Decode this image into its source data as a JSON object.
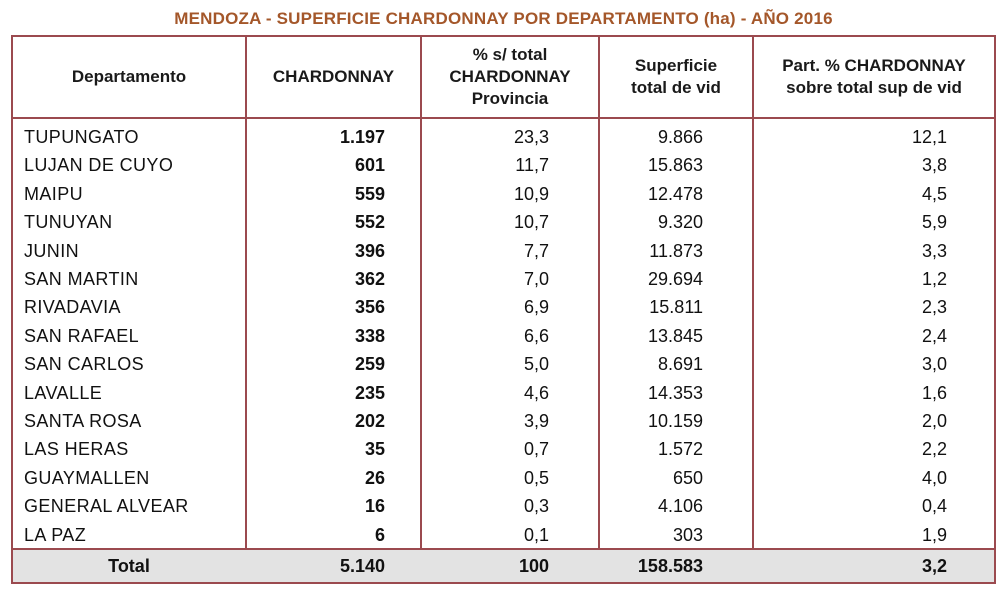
{
  "title": "MENDOZA - SUPERFICIE CHARDONNAY POR DEPARTAMENTO (ha) - AÑO 2016",
  "colors": {
    "title": "#a4572a",
    "border": "#9b4a4f",
    "total_bg": "#e3e3e3"
  },
  "headers": {
    "departamento": "Departamento",
    "chardonnay": "CHARDONNAY",
    "pct_total": [
      "% s/ total",
      "CHARDONNAY",
      "Provincia"
    ],
    "superficie": [
      "Superficie",
      "total de vid"
    ],
    "participacion": [
      "Part. % CHARDONNAY",
      "sobre total sup de vid"
    ]
  },
  "chart_data": {
    "type": "table",
    "title": "MENDOZA - SUPERFICIE CHARDONNAY POR DEPARTAMENTO (ha) - AÑO 2016",
    "columns": [
      "Departamento",
      "CHARDONNAY",
      "% s/ total CHARDONNAY Provincia",
      "Superficie total de vid",
      "Part. % CHARDONNAY sobre total sup de vid"
    ],
    "rows": [
      [
        "TUPUNGATO",
        "1.197",
        "23,3",
        "9.866",
        "12,1"
      ],
      [
        "LUJAN DE CUYO",
        "601",
        "11,7",
        "15.863",
        "3,8"
      ],
      [
        "MAIPU",
        "559",
        "10,9",
        "12.478",
        "4,5"
      ],
      [
        "TUNUYAN",
        "552",
        "10,7",
        "9.320",
        "5,9"
      ],
      [
        "JUNIN",
        "396",
        "7,7",
        "11.873",
        "3,3"
      ],
      [
        "SAN MARTIN",
        "362",
        "7,0",
        "29.694",
        "1,2"
      ],
      [
        "RIVADAVIA",
        "356",
        "6,9",
        "15.811",
        "2,3"
      ],
      [
        "SAN RAFAEL",
        "338",
        "6,6",
        "13.845",
        "2,4"
      ],
      [
        "SAN CARLOS",
        "259",
        "5,0",
        "8.691",
        "3,0"
      ],
      [
        "LAVALLE",
        "235",
        "4,6",
        "14.353",
        "1,6"
      ],
      [
        "SANTA ROSA",
        "202",
        "3,9",
        "10.159",
        "2,0"
      ],
      [
        "LAS HERAS",
        "35",
        "0,7",
        "1.572",
        "2,2"
      ],
      [
        "GUAYMALLEN",
        "26",
        "0,5",
        "650",
        "4,0"
      ],
      [
        "GENERAL ALVEAR",
        "16",
        "0,3",
        "4.106",
        "0,4"
      ],
      [
        "LA PAZ",
        "6",
        "0,1",
        "303",
        "1,9"
      ]
    ],
    "total": [
      "Total",
      "5.140",
      "100",
      "158.583",
      "3,2"
    ]
  }
}
